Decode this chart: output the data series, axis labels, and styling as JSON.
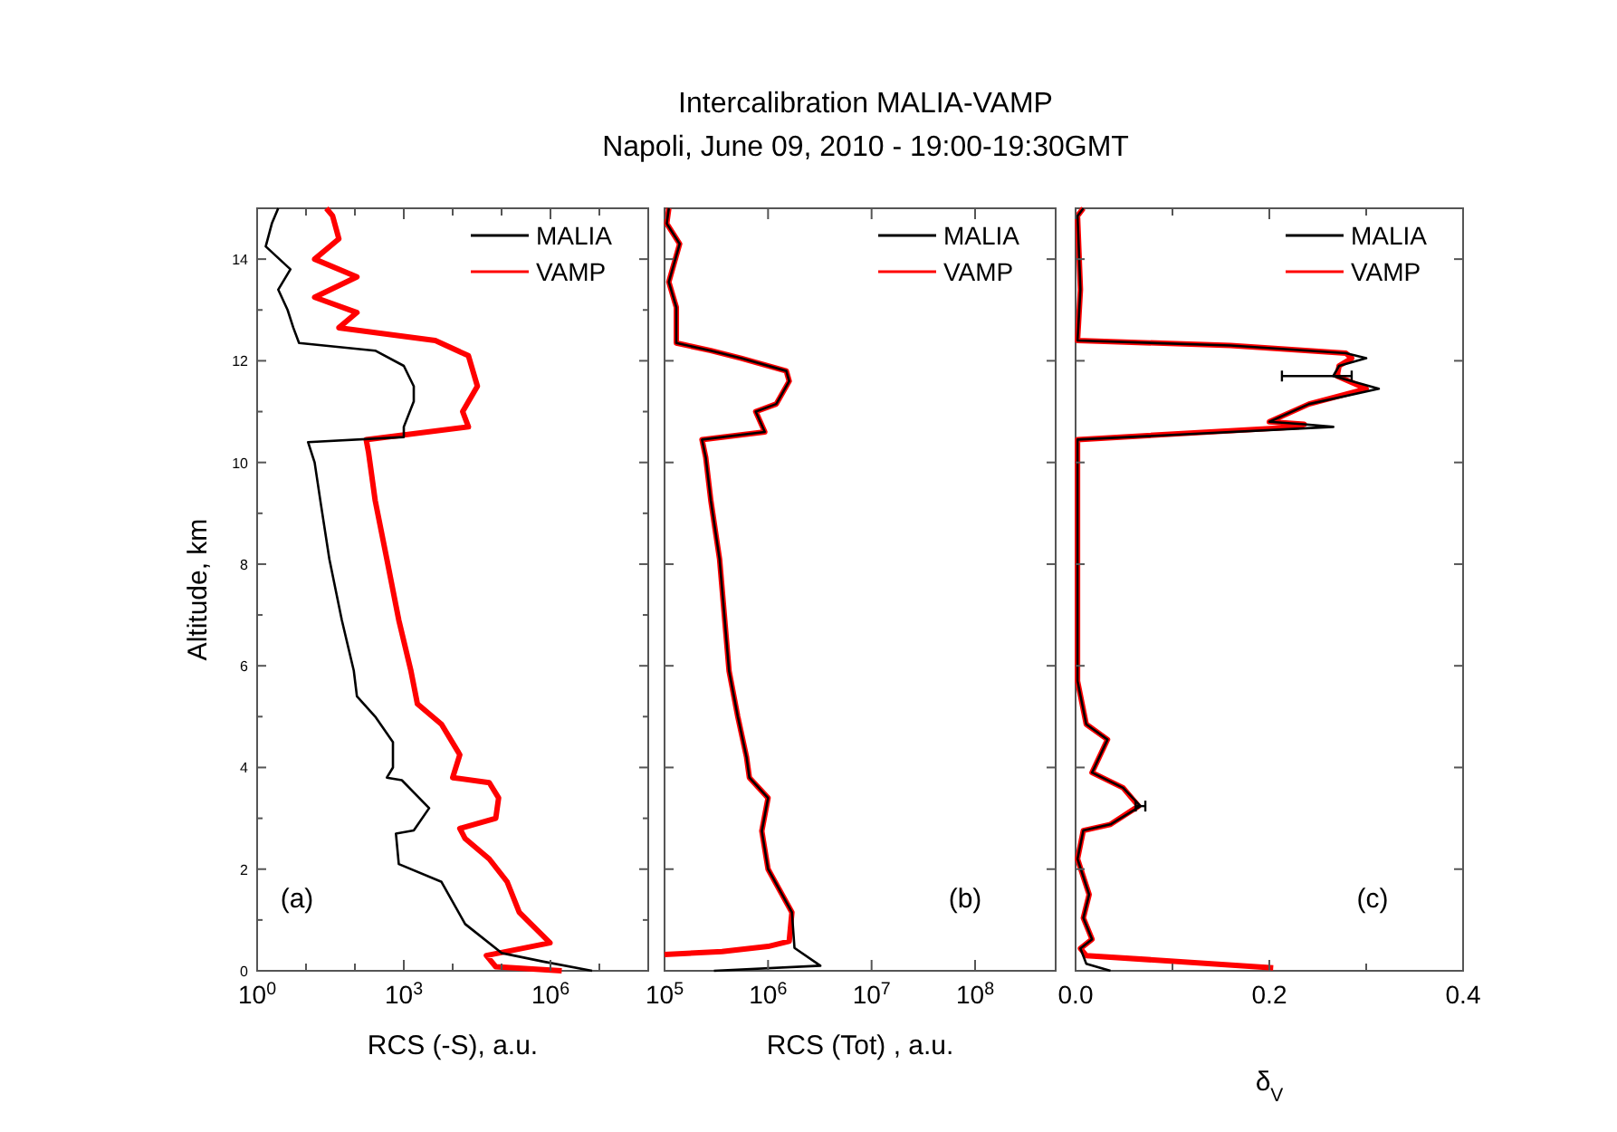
{
  "chart_data": [
    {
      "type": "line",
      "xlabel": "RCS (-S), a.u.",
      "ylabel": "Altitude, km",
      "log": "x",
      "legend": "top right",
      "annotations": [
        "(a)"
      ],
      "xlim": [
        1,
        100000000
      ],
      "xticks": [
        {
          "value": 1,
          "label": "10$^{0}$"
        },
        {
          "value": 10,
          "label": null
        },
        {
          "value": 100,
          "label": null
        },
        {
          "value": 1000,
          "label": "10$^{3}$"
        },
        {
          "value": 10000,
          "label": null
        },
        {
          "value": 100000,
          "label": null
        },
        {
          "value": 1000000,
          "label": "10$^{6}$"
        },
        {
          "value": 10000000,
          "label": null
        },
        {
          "value": 100000000,
          "label": null
        }
      ],
      "ylim": [
        0,
        15
      ],
      "yticks": [
        0,
        {
          "value": 1,
          "label": null
        },
        2,
        {
          "value": 3,
          "label": null
        },
        4,
        {
          "value": 5,
          "label": null
        },
        6,
        {
          "value": 7,
          "label": null
        },
        8,
        {
          "value": 9,
          "label": null
        },
        10,
        {
          "value": 11,
          "label": null
        },
        12,
        {
          "value": 13,
          "label": null
        },
        14
      ],
      "series": [
        {
          "name": "MALIA",
          "color": "#000000",
          "x": [
            7100000,
            720000,
            100000,
            18000,
            5900,
            790,
            690,
            1600,
            3300,
            910,
            450,
            600,
            600,
            260,
            110,
            95,
            54,
            30,
            20,
            15,
            11,
            1000,
            1000,
            1600,
            1600,
            1000,
            260,
            7.2,
            5.5,
            4.2,
            2.7,
            4.8,
            1.5,
            2.0,
            2.7
          ],
          "values": [
            0,
            0.18,
            0.35,
            0.92,
            1.75,
            2.1,
            2.7,
            2.76,
            3.2,
            3.75,
            3.8,
            4.0,
            4.5,
            5.0,
            5.4,
            5.9,
            6.9,
            8.1,
            9.2,
            10.0,
            10.4,
            10.5,
            10.7,
            11.2,
            11.5,
            11.9,
            12.2,
            12.35,
            12.65,
            13.0,
            13.4,
            13.8,
            14.25,
            14.7,
            15
          ]
        },
        {
          "name": "VAMP",
          "color": "#ff0000",
          "x": [
            1700000,
            76000,
            49000,
            980000,
            230000,
            130000,
            56000,
            18000,
            14000,
            76000,
            87000,
            56000,
            10000,
            14000,
            5900,
            1900,
            1400,
            790,
            450,
            260,
            190,
            170,
            21000,
            16000,
            32000,
            21000,
            4400,
            47,
            110,
            15,
            110,
            15,
            47,
            35,
            26
          ],
          "values": [
            0,
            0.08,
            0.3,
            0.55,
            1.15,
            1.75,
            2.2,
            2.6,
            2.8,
            3.0,
            3.4,
            3.7,
            3.8,
            4.25,
            4.85,
            5.25,
            5.9,
            6.9,
            8.1,
            9.25,
            10.2,
            10.45,
            10.7,
            11.0,
            11.5,
            12.1,
            12.4,
            12.65,
            12.95,
            13.25,
            13.65,
            14.0,
            14.4,
            14.85,
            15
          ]
        }
      ]
    },
    {
      "type": "line",
      "title": "Intercalibration MALIA-VAMP",
      "subtitle": "Napoli, June 09, 2010 - 19:00-19:30GMT",
      "xlabel": "RCS (Tot) , a.u.",
      "log": "x",
      "legend": "top right",
      "tick_labels": "x",
      "annotations": [
        "(b)"
      ],
      "xlim": [
        100000,
        600000000
      ],
      "xticks": [
        {
          "value": 100000,
          "label": "10$^{5}$"
        },
        {
          "value": 1000000,
          "label": "10$^{6}$"
        },
        {
          "value": 10000000,
          "label": "10$^{7}$"
        },
        {
          "value": 100000000,
          "label": "10$^{8}$"
        }
      ],
      "ylim": [
        0,
        15
      ],
      "yticks": [
        {
          "value": 0,
          "label": null
        },
        {
          "value": 2,
          "label": null
        },
        {
          "value": 4,
          "label": null
        },
        {
          "value": 6,
          "label": null
        },
        {
          "value": 8,
          "label": null
        },
        {
          "value": 10,
          "label": null
        },
        {
          "value": 12,
          "label": null
        },
        {
          "value": 14,
          "label": null
        }
      ],
      "series": [
        {
          "name": "MALIA",
          "color": "#000000",
          "x": [
            300000,
            3200000,
            1800000,
            1700000,
            1000000,
            870000,
            1000000,
            660000,
            620000,
            510000,
            420000,
            340000,
            280000,
            250000,
            230000,
            930000,
            760000,
            1200000,
            1600000,
            1500000,
            550000,
            280000,
            130000,
            130000,
            110000,
            140000,
            105000,
            110000
          ],
          "values": [
            0,
            0.1,
            0.45,
            1.15,
            2.0,
            2.75,
            3.4,
            3.8,
            4.2,
            5.0,
            5.9,
            8.1,
            9.25,
            10.1,
            10.45,
            10.6,
            11.0,
            11.15,
            11.6,
            11.8,
            12.05,
            12.2,
            12.35,
            13.05,
            13.55,
            14.3,
            14.7,
            15
          ]
        },
        {
          "name": "VAMP",
          "color": "#ff0000",
          "x": [
            100000,
            360000,
            1000000,
            1600000,
            1700000,
            1000000,
            870000,
            1000000,
            660000,
            620000,
            510000,
            420000,
            340000,
            280000,
            250000,
            230000,
            930000,
            760000,
            1200000,
            1600000,
            1500000,
            550000,
            280000,
            130000,
            130000,
            110000,
            140000,
            105000,
            110000
          ],
          "values": [
            0.32,
            0.38,
            0.48,
            0.58,
            1.15,
            2.0,
            2.75,
            3.4,
            3.8,
            4.2,
            5.0,
            5.9,
            8.1,
            9.25,
            10.1,
            10.45,
            10.6,
            11.0,
            11.15,
            11.6,
            11.8,
            12.05,
            12.2,
            12.35,
            13.05,
            13.55,
            14.3,
            14.7,
            15
          ]
        }
      ]
    },
    {
      "type": "line",
      "xlabel": "δ$_{V}$",
      "legend": "top right",
      "tick_labels": "x",
      "annotations": [
        "(c)"
      ],
      "xlim": [
        0,
        0.4
      ],
      "xticks": [
        "0.0",
        {
          "value": 0.1,
          "label": null
        },
        {
          "value": 0.2,
          "label": "0.2"
        },
        {
          "value": 0.3,
          "label": null
        },
        {
          "value": 0.4,
          "label": "0.4"
        }
      ],
      "ylim": [
        0,
        15
      ],
      "yticks": [
        {
          "value": 0,
          "label": null
        },
        {
          "value": 2,
          "label": null
        },
        {
          "value": 4,
          "label": null
        },
        {
          "value": 6,
          "label": null
        },
        {
          "value": 8,
          "label": null
        },
        {
          "value": 10,
          "label": null
        },
        {
          "value": 12,
          "label": null
        },
        {
          "value": 14,
          "label": null
        }
      ],
      "series": [
        {
          "name": "MALIA",
          "color": "#000000",
          "x": [
            0.036,
            0.011,
            0.005,
            0.017,
            0.008,
            0.014,
            0.002,
            0.008,
            0.036,
            0.067,
            0.049,
            0.017,
            0.033,
            0.011,
            0.002,
            0.002,
            0.266,
            0.236,
            0.2,
            0.241,
            0.313,
            0.266,
            0.272,
            0.3,
            0.279,
            0.16,
            0.002,
            0.005,
            0.002,
            0.008
          ],
          "values": [
            0,
            0.14,
            0.44,
            0.62,
            1.04,
            1.5,
            2.2,
            2.76,
            2.88,
            3.24,
            3.6,
            3.9,
            4.55,
            4.85,
            5.7,
            10.45,
            10.7,
            10.75,
            10.8,
            11.15,
            11.45,
            11.7,
            11.9,
            12.05,
            12.15,
            12.3,
            12.4,
            13.4,
            14.85,
            15
          ],
          "xerrors": [
            null,
            null,
            null,
            null,
            null,
            null,
            null,
            null,
            null,
            [
              0.062,
              0.072
            ],
            null,
            null,
            null,
            null,
            null,
            null,
            null,
            null,
            null,
            null,
            null,
            [
              0.213,
              0.285
            ],
            null,
            null,
            null,
            null,
            null,
            null,
            null,
            null
          ]
        },
        {
          "name": "VAMP",
          "color": "#ff0000",
          "x": [
            0.204,
            0.011,
            0.005,
            0.017,
            0.008,
            0.014,
            0.002,
            0.008,
            0.036,
            0.065,
            0.049,
            0.017,
            0.033,
            0.011,
            0.002,
            0.002,
            0.23,
            0.236,
            0.2,
            0.241,
            0.3,
            0.27,
            0.272,
            0.285,
            0.279,
            0.16,
            0.002,
            0.005,
            0.002,
            0.008
          ],
          "values": [
            0.06,
            0.3,
            0.44,
            0.62,
            1.04,
            1.5,
            2.2,
            2.76,
            2.88,
            3.24,
            3.6,
            3.9,
            4.55,
            4.85,
            5.7,
            10.45,
            10.7,
            10.75,
            10.8,
            11.15,
            11.45,
            11.7,
            11.9,
            12.05,
            12.15,
            12.3,
            12.4,
            13.4,
            14.85,
            15
          ]
        }
      ]
    }
  ]
}
